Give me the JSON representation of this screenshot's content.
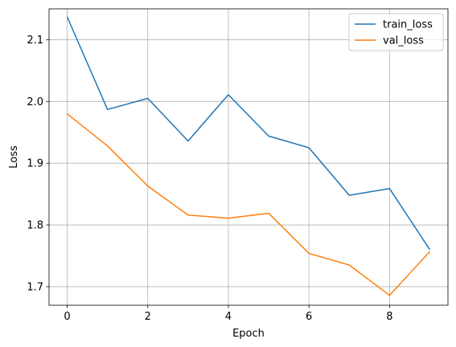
{
  "chart_data": {
    "type": "line",
    "title": "",
    "xlabel": "Epoch",
    "ylabel": "Loss",
    "xlim": [
      -0.45,
      9.45
    ],
    "ylim": [
      1.67,
      2.15
    ],
    "xticks": [
      0,
      2,
      4,
      6,
      8
    ],
    "yticks": [
      1.7,
      1.8,
      1.9,
      2.0,
      2.1
    ],
    "xtick_labels": [
      "0",
      "2",
      "4",
      "6",
      "8"
    ],
    "ytick_labels": [
      "1.7",
      "1.8",
      "1.9",
      "2.0",
      "2.1"
    ],
    "grid": true,
    "legend_position": "top-right",
    "x": [
      0,
      1,
      2,
      3,
      4,
      5,
      6,
      7,
      8,
      9
    ],
    "series": [
      {
        "name": "train_loss",
        "color": "#1f77b4",
        "values": [
          2.137,
          1.987,
          2.005,
          1.936,
          2.011,
          1.944,
          1.925,
          1.848,
          1.859,
          1.76
        ]
      },
      {
        "name": "val_loss",
        "color": "#ff7f0e",
        "values": [
          1.98,
          1.928,
          1.863,
          1.816,
          1.811,
          1.819,
          1.754,
          1.735,
          1.686,
          1.757
        ]
      }
    ]
  }
}
